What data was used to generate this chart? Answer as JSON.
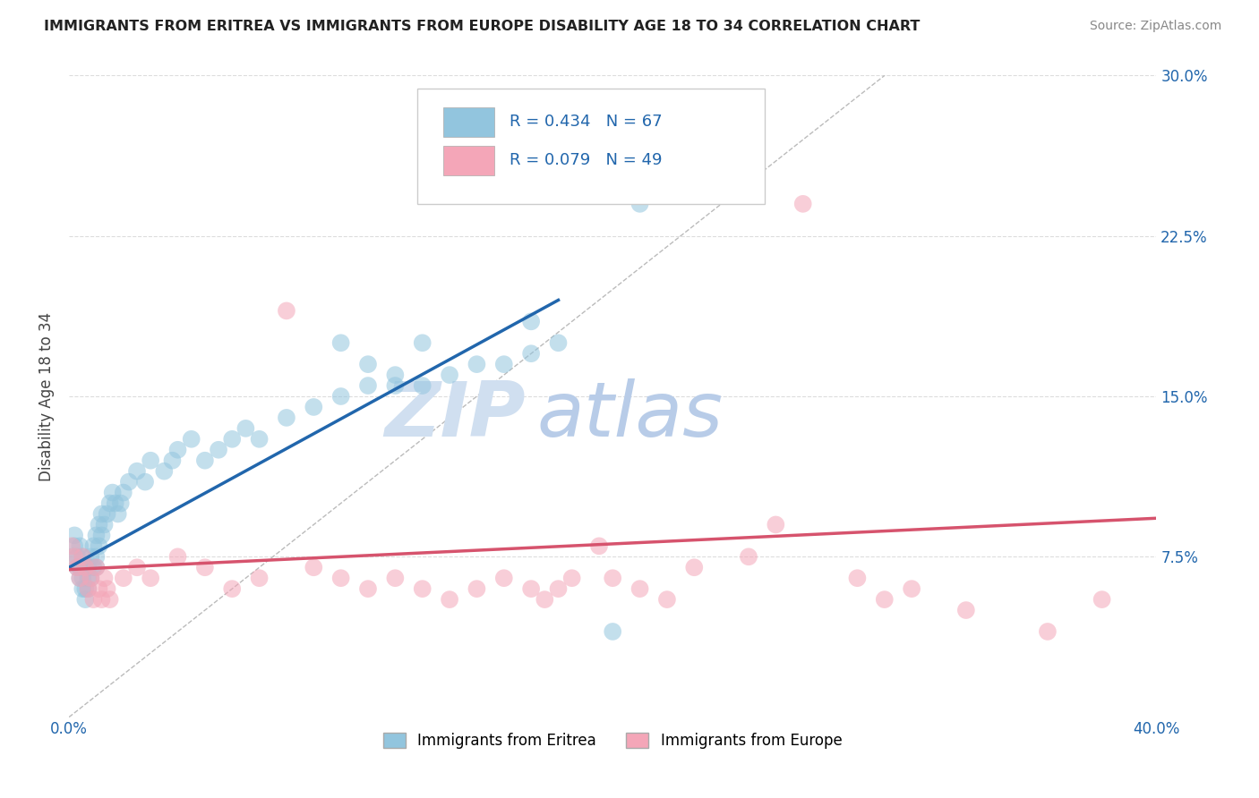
{
  "title": "IMMIGRANTS FROM ERITREA VS IMMIGRANTS FROM EUROPE DISABILITY AGE 18 TO 34 CORRELATION CHART",
  "source": "Source: ZipAtlas.com",
  "ylabel": "Disability Age 18 to 34",
  "xlim": [
    0.0,
    0.4
  ],
  "ylim": [
    0.0,
    0.3
  ],
  "xtick_vals": [
    0.0,
    0.4
  ],
  "xtick_labels": [
    "0.0%",
    "40.0%"
  ],
  "ytick_vals_right": [
    0.075,
    0.15,
    0.225,
    0.3
  ],
  "ytick_labels_right": [
    "7.5%",
    "15.0%",
    "22.5%",
    "30.0%"
  ],
  "blue_color": "#92c5de",
  "pink_color": "#f4a6b8",
  "blue_line_color": "#2166ac",
  "pink_line_color": "#d6536d",
  "legend_R_blue": "R = 0.434",
  "legend_N_blue": "N = 67",
  "legend_R_pink": "R = 0.079",
  "legend_N_pink": "N = 49",
  "legend_label_blue": "Immigrants from Eritrea",
  "legend_label_pink": "Immigrants from Europe",
  "watermark_zip": "ZIP",
  "watermark_atlas": "atlas",
  "watermark_color_zip": "#d0dff0",
  "watermark_color_atlas": "#b8cce8",
  "blue_scatter_x": [
    0.001,
    0.002,
    0.002,
    0.003,
    0.003,
    0.004,
    0.004,
    0.004,
    0.005,
    0.005,
    0.005,
    0.006,
    0.006,
    0.006,
    0.007,
    0.007,
    0.007,
    0.008,
    0.008,
    0.009,
    0.009,
    0.01,
    0.01,
    0.01,
    0.011,
    0.011,
    0.012,
    0.012,
    0.013,
    0.014,
    0.015,
    0.016,
    0.017,
    0.018,
    0.019,
    0.02,
    0.022,
    0.025,
    0.028,
    0.03,
    0.035,
    0.038,
    0.04,
    0.045,
    0.05,
    0.055,
    0.06,
    0.065,
    0.07,
    0.08,
    0.09,
    0.1,
    0.11,
    0.12,
    0.13,
    0.14,
    0.15,
    0.16,
    0.17,
    0.18,
    0.1,
    0.11,
    0.12,
    0.13,
    0.17,
    0.21,
    0.2
  ],
  "blue_scatter_y": [
    0.075,
    0.08,
    0.085,
    0.07,
    0.075,
    0.065,
    0.07,
    0.08,
    0.06,
    0.065,
    0.075,
    0.055,
    0.06,
    0.07,
    0.06,
    0.065,
    0.07,
    0.065,
    0.075,
    0.07,
    0.08,
    0.07,
    0.075,
    0.085,
    0.08,
    0.09,
    0.085,
    0.095,
    0.09,
    0.095,
    0.1,
    0.105,
    0.1,
    0.095,
    0.1,
    0.105,
    0.11,
    0.115,
    0.11,
    0.12,
    0.115,
    0.12,
    0.125,
    0.13,
    0.12,
    0.125,
    0.13,
    0.135,
    0.13,
    0.14,
    0.145,
    0.15,
    0.155,
    0.16,
    0.155,
    0.16,
    0.165,
    0.165,
    0.17,
    0.175,
    0.175,
    0.165,
    0.155,
    0.175,
    0.185,
    0.24,
    0.04
  ],
  "pink_scatter_x": [
    0.001,
    0.002,
    0.003,
    0.004,
    0.005,
    0.006,
    0.007,
    0.008,
    0.009,
    0.01,
    0.011,
    0.012,
    0.013,
    0.014,
    0.015,
    0.02,
    0.025,
    0.03,
    0.04,
    0.05,
    0.06,
    0.07,
    0.08,
    0.09,
    0.1,
    0.11,
    0.12,
    0.13,
    0.14,
    0.15,
    0.16,
    0.17,
    0.175,
    0.18,
    0.185,
    0.195,
    0.2,
    0.21,
    0.22,
    0.23,
    0.25,
    0.26,
    0.27,
    0.29,
    0.3,
    0.31,
    0.33,
    0.36,
    0.38
  ],
  "pink_scatter_y": [
    0.08,
    0.075,
    0.07,
    0.065,
    0.075,
    0.07,
    0.06,
    0.065,
    0.055,
    0.07,
    0.06,
    0.055,
    0.065,
    0.06,
    0.055,
    0.065,
    0.07,
    0.065,
    0.075,
    0.07,
    0.06,
    0.065,
    0.19,
    0.07,
    0.065,
    0.06,
    0.065,
    0.06,
    0.055,
    0.06,
    0.065,
    0.06,
    0.055,
    0.06,
    0.065,
    0.08,
    0.065,
    0.06,
    0.055,
    0.07,
    0.075,
    0.09,
    0.24,
    0.065,
    0.055,
    0.06,
    0.05,
    0.04,
    0.055
  ],
  "blue_line_x": [
    0.0,
    0.18
  ],
  "blue_line_y": [
    0.07,
    0.195
  ],
  "pink_line_x": [
    0.0,
    0.4
  ],
  "pink_line_y": [
    0.069,
    0.093
  ],
  "diag_line_x": [
    0.0,
    0.3
  ],
  "diag_line_y": [
    0.0,
    0.3
  ]
}
